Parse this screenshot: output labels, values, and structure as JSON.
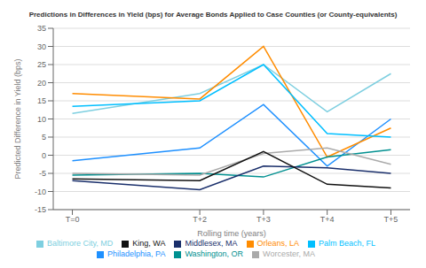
{
  "chart_data": {
    "type": "line",
    "title": "Predictions in Differences in Yield (bps) for Average Bonds Applied to Case Counties (or County-equivalents)",
    "xlabel": "Rolling time (years)",
    "ylabel": "Predicted Difference in Yield (bps)",
    "x": [
      0,
      2,
      3,
      4,
      5
    ],
    "xlim": [
      -0.3,
      5.3
    ],
    "xticks": [
      {
        "value": 0,
        "label": "T=0"
      },
      {
        "value": 2,
        "label": "T+2"
      },
      {
        "value": 3,
        "label": "T+3"
      },
      {
        "value": 4,
        "label": "T+4"
      },
      {
        "value": 5,
        "label": "T+5"
      }
    ],
    "ylim": [
      -15,
      35
    ],
    "yticks": [
      -15,
      -10,
      -5,
      0,
      5,
      10,
      15,
      20,
      25,
      30,
      35
    ],
    "grid": "y",
    "legend": "bottom",
    "series": [
      {
        "name": "Baltimore City, MD",
        "color": "#7ecfe0",
        "values": [
          11.5,
          17.0,
          25.0,
          12.0,
          22.5
        ]
      },
      {
        "name": "Philadelphia, PA",
        "color": "#1e90ff",
        "values": [
          -1.5,
          2.0,
          14.0,
          -3.0,
          10.0
        ]
      },
      {
        "name": "Orleans, LA",
        "color": "#ff8c00",
        "values": [
          17.0,
          15.5,
          30.0,
          -0.5,
          7.5
        ]
      },
      {
        "name": "Palm Beach, FL",
        "color": "#00bfff",
        "values": [
          13.5,
          15.0,
          25.0,
          6.0,
          5.0
        ]
      },
      {
        "name": "Washington, OR",
        "color": "#009090",
        "values": [
          -5.5,
          -5.0,
          -6.0,
          -0.5,
          1.5
        ]
      },
      {
        "name": "Worcester, MA",
        "color": "#aaaaaa",
        "values": [
          -5.0,
          -5.5,
          0.5,
          2.0,
          -2.5
        ]
      },
      {
        "name": "Middlesex, MA",
        "color": "#1a2f6b",
        "values": [
          -7.0,
          -9.5,
          -3.0,
          -3.5,
          -5.0
        ]
      },
      {
        "name": "King, WA",
        "color": "#111111",
        "values": [
          -6.5,
          -7.0,
          1.0,
          -8.0,
          -9.0
        ]
      }
    ]
  }
}
